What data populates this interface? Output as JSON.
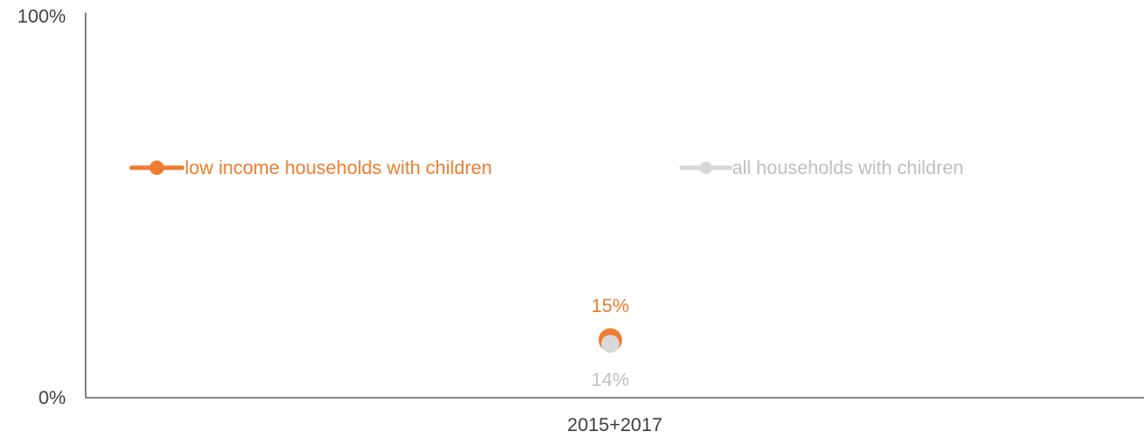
{
  "chart_data": {
    "type": "line",
    "title": "",
    "xlabel": "",
    "ylabel": "",
    "categories": [
      "2015+2017"
    ],
    "ylim": [
      0,
      100
    ],
    "y_tick_labels": [
      "0%",
      "100%"
    ],
    "grid": false,
    "legend_position": "center",
    "series": [
      {
        "name": "low income households with children",
        "values": [
          15
        ],
        "labels": [
          "15%"
        ],
        "label_position": "above",
        "color": "#ED7D31"
      },
      {
        "name": "all households with children",
        "values": [
          14
        ],
        "labels": [
          "14%"
        ],
        "label_position": "below",
        "color": "#D9D9D9"
      }
    ]
  },
  "colors": {
    "axis": "#404040",
    "tick_text": "#404040",
    "series_1": "#ED7D31",
    "series_2": "#D9D9D9",
    "series_2_label": "#BFBFBF"
  }
}
